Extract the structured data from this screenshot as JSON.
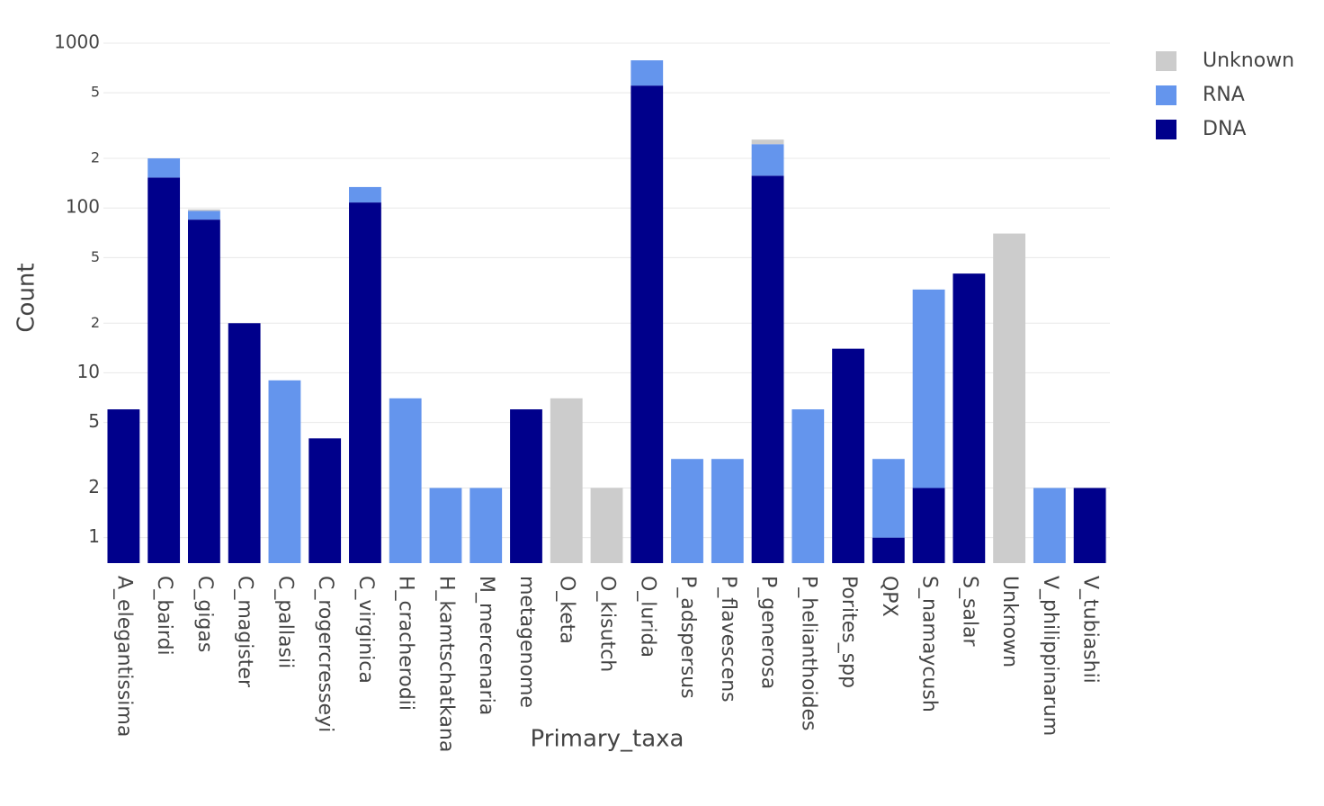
{
  "chart_data": {
    "type": "bar",
    "stacked": true,
    "log_y": true,
    "grid": true,
    "xlabel": "Primary_taxa",
    "ylabel": "Count",
    "categories": [
      "A_elegantissima",
      "C_bairdi",
      "C_gigas",
      "C_magister",
      "C_pallasii",
      "C_rogercresseyi",
      "C_virginica",
      "H_cracherodii",
      "H_kamtschatkana",
      "M_mercenaria",
      "metagenome",
      "O_keta",
      "O_kisutch",
      "O_lurida",
      "P_adspersus",
      "P_flavescens",
      "P_generosa",
      "P_helianthoides",
      "Porites_spp",
      "QPX",
      "S_namaycush",
      "S_salar",
      "Unknown",
      "V_philippinarum",
      "V_tubiashii"
    ],
    "series": [
      {
        "name": "DNA",
        "color": "#00008b",
        "values": [
          6,
          153,
          85,
          20,
          null,
          4,
          108,
          null,
          null,
          null,
          6,
          null,
          null,
          553,
          null,
          null,
          157,
          null,
          14,
          1,
          2,
          40,
          null,
          null,
          2
        ]
      },
      {
        "name": "RNA",
        "color": "#6495ed",
        "values": [
          null,
          47,
          11,
          null,
          9,
          null,
          26,
          7,
          2,
          2,
          null,
          null,
          null,
          234,
          3,
          3,
          87,
          6,
          null,
          2,
          30,
          null,
          null,
          2,
          null
        ]
      },
      {
        "name": "Unknown",
        "color": "#cccccc",
        "values": [
          null,
          null,
          2,
          null,
          null,
          null,
          null,
          null,
          null,
          null,
          null,
          7,
          2,
          null,
          null,
          null,
          16,
          null,
          null,
          null,
          null,
          null,
          70,
          null,
          null
        ]
      }
    ],
    "ylim": [
      0.7,
      1000
    ],
    "yticks": [
      1,
      2,
      5,
      10,
      {
        "value": 20,
        "label": "2"
      },
      {
        "value": 50,
        "label": "5"
      },
      100,
      {
        "value": 200,
        "label": "2"
      },
      {
        "value": 500,
        "label": "5"
      },
      1000
    ]
  }
}
